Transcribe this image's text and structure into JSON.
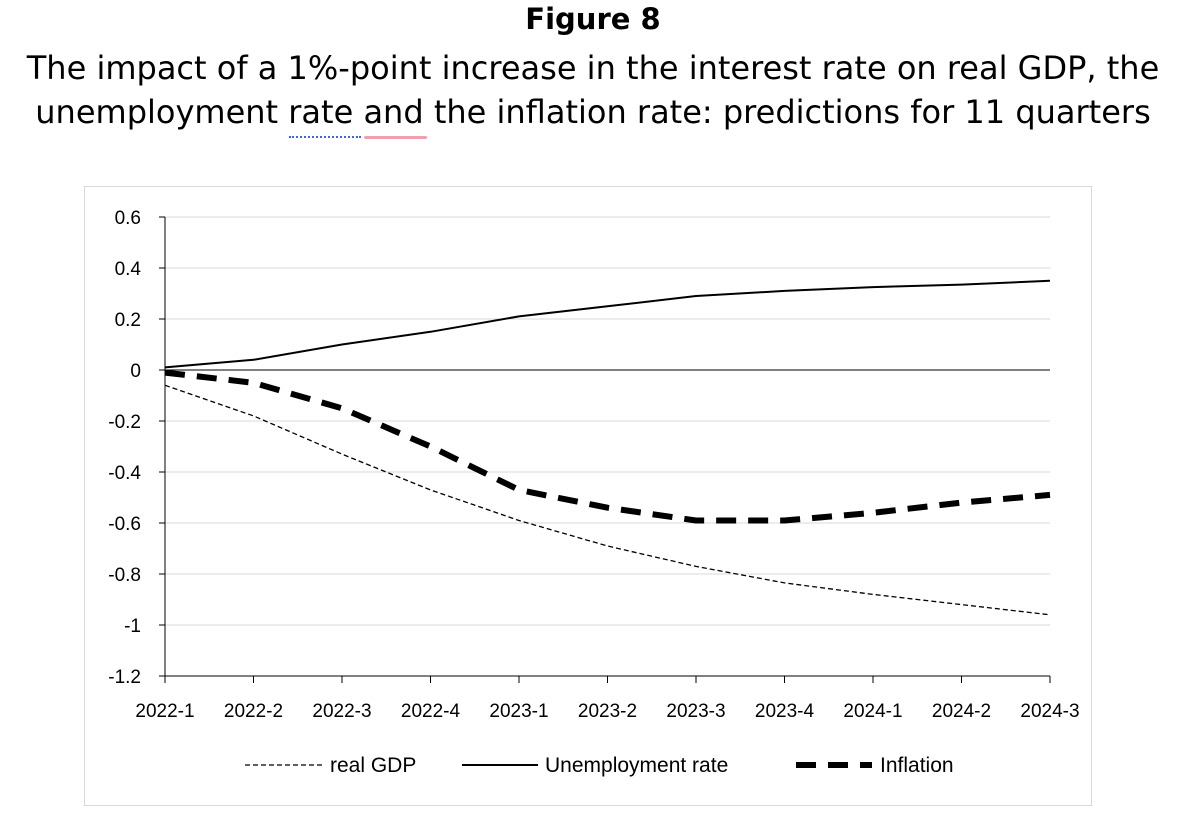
{
  "figure": {
    "label": "Figure 8",
    "title_line1": "The impact of a 1%-point increase in the interest rate on real GDP, the",
    "title_line2": "unemployment rate and the inflation rate: predictions for 11 quarters"
  },
  "chart_data": {
    "type": "line",
    "title": "",
    "xlabel": "",
    "ylabel": "",
    "x": [
      "2022-1",
      "2022-2",
      "2022-3",
      "2022-4",
      "2023-1",
      "2023-2",
      "2023-3",
      "2023-4",
      "2024-1",
      "2024-2",
      "2024-3"
    ],
    "ylim": [
      -1.2,
      0.6
    ],
    "yticks": [
      0.6,
      0.4,
      0.2,
      0,
      -0.2,
      -0.4,
      -0.6,
      -0.8,
      -1,
      -1.2
    ],
    "ytick_labels": [
      "0.6",
      "0.4",
      "0.2",
      "0",
      "-0.2",
      "-0.4",
      "-0.6",
      "-0.8",
      "-1",
      "-1.2"
    ],
    "grid": true,
    "legend_position": "bottom",
    "series": [
      {
        "name": "real GDP",
        "style": "thin-dashed",
        "color": "#000000",
        "values": [
          -0.06,
          -0.18,
          -0.33,
          -0.47,
          -0.59,
          -0.69,
          -0.77,
          -0.835,
          -0.88,
          -0.92,
          -0.96
        ]
      },
      {
        "name": "Unemployment rate",
        "style": "solid",
        "color": "#000000",
        "values": [
          0.01,
          0.04,
          0.1,
          0.15,
          0.21,
          0.25,
          0.29,
          0.31,
          0.325,
          0.335,
          0.35
        ]
      },
      {
        "name": "Inflation",
        "style": "thick-dashed",
        "color": "#000000",
        "values": [
          -0.01,
          -0.05,
          -0.15,
          -0.3,
          -0.47,
          -0.54,
          -0.59,
          -0.59,
          -0.56,
          -0.52,
          -0.49
        ]
      }
    ]
  }
}
